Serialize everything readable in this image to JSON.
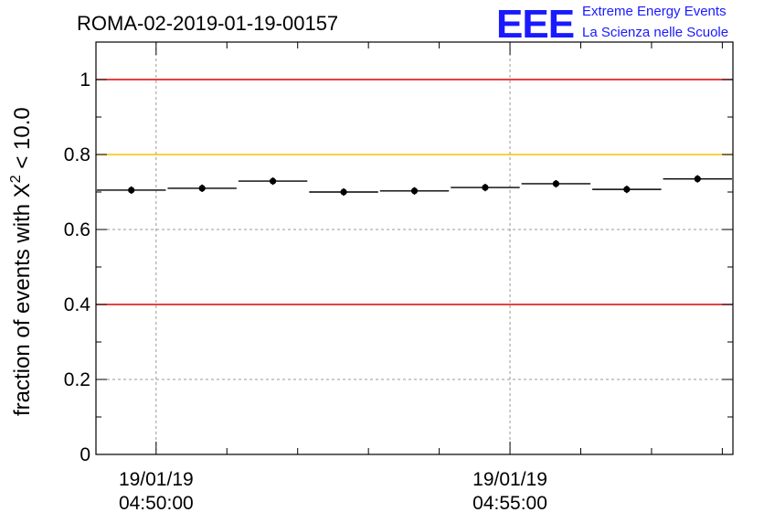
{
  "title": "ROMA-02-2019-01-19-00157",
  "logo": {
    "mark": "EEE",
    "line1": "Extreme Energy Events",
    "line2": "La Scienza nelle Scuole",
    "color": "#1a1aff"
  },
  "chart_data": {
    "type": "scatter",
    "title": "ROMA-02-2019-01-19-00157",
    "ylabel_main": "fraction of events with X",
    "ylabel_sup": "2",
    "ylabel_tail": " < 10.0",
    "xlabel": "",
    "ylim": [
      0,
      1.1
    ],
    "xlim_minutes": [
      -0.85,
      8.15
    ],
    "yticks": [
      "0",
      "0.2",
      "0.4",
      "0.6",
      "0.8",
      "1"
    ],
    "xticks": [
      {
        "minute": 0,
        "date": "19/01/19",
        "time": "04:50:00"
      },
      {
        "minute": 5,
        "date": "19/01/19",
        "time": "04:55:00"
      }
    ],
    "reference_lines": [
      {
        "y": 1.0,
        "color": "#e00000"
      },
      {
        "y": 0.8,
        "color": "#ffc000"
      },
      {
        "y": 0.4,
        "color": "#e00000"
      }
    ],
    "grid": true,
    "points": [
      {
        "x_start": -0.85,
        "x_end": 0.15,
        "y": 0.705,
        "err": 0.01
      },
      {
        "x_start": 0.15,
        "x_end": 1.15,
        "y": 0.71,
        "err": 0.01
      },
      {
        "x_start": 1.15,
        "x_end": 2.15,
        "y": 0.729,
        "err": 0.01
      },
      {
        "x_start": 2.15,
        "x_end": 3.15,
        "y": 0.7,
        "err": 0.01
      },
      {
        "x_start": 3.15,
        "x_end": 4.15,
        "y": 0.703,
        "err": 0.01
      },
      {
        "x_start": 4.15,
        "x_end": 5.15,
        "y": 0.712,
        "err": 0.01
      },
      {
        "x_start": 5.15,
        "x_end": 6.15,
        "y": 0.722,
        "err": 0.01
      },
      {
        "x_start": 6.15,
        "x_end": 7.15,
        "y": 0.707,
        "err": 0.01
      },
      {
        "x_start": 7.15,
        "x_end": 8.15,
        "y": 0.735,
        "err": 0.01
      }
    ]
  }
}
